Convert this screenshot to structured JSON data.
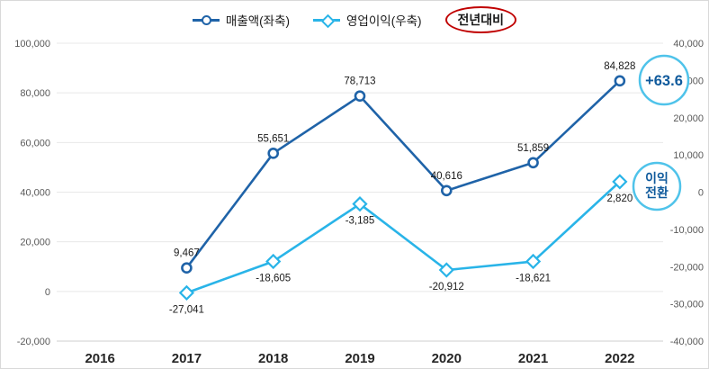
{
  "legend": {
    "series1": "매출액(좌축)",
    "series2": "영업이익(우축)",
    "annotation": "전년대비"
  },
  "colors": {
    "revenue": "#1f63a8",
    "profit": "#29b4e8",
    "annotation_red": "#c00000",
    "badge_stroke": "#4fc3ea",
    "badge_text": "#0f5a9c",
    "grid": "#e8e8e8",
    "axis_line": "#cfcfcf",
    "axis_text": "#595959",
    "x_text": "#262626",
    "data_label": "#1a1a1a"
  },
  "chart_data": {
    "type": "line",
    "title": "",
    "categories": [
      "2016",
      "2017",
      "2018",
      "2019",
      "2020",
      "2021",
      "2022"
    ],
    "series": [
      {
        "name": "매출액(좌축)",
        "axis": "left",
        "marker": "circle",
        "values": [
          null,
          9467,
          55651,
          78713,
          40616,
          51859,
          84828
        ],
        "labels": [
          null,
          "9,467",
          "55,651",
          "78,713",
          "40,616",
          "51,859",
          "84,828"
        ]
      },
      {
        "name": "영업이익(우축)",
        "axis": "right",
        "marker": "diamond",
        "values": [
          null,
          -27041,
          -18605,
          -3185,
          -20912,
          -18621,
          2820
        ],
        "labels": [
          null,
          "-27,041",
          "-18,605",
          "-3,185",
          "-20,912",
          "-18,621",
          "2,820"
        ]
      }
    ],
    "left_axis": {
      "min": -20000,
      "max": 100000,
      "step": 20000,
      "ticks": [
        "100,000",
        "80,000",
        "60,000",
        "40,000",
        "20,000",
        "0",
        "-20,000"
      ]
    },
    "right_axis": {
      "min": -40000,
      "max": 40000,
      "step": 10000,
      "ticks": [
        "40,000",
        "30,000",
        "20,000",
        "10,000",
        "0",
        "-10,000",
        "-20,000",
        "-30,000",
        "-40,000"
      ]
    },
    "grid": "horizontal",
    "legend_position": "top",
    "annotations": [
      {
        "type": "circle-badge",
        "text": "+63.6",
        "near": "2022 revenue point"
      },
      {
        "type": "circle-badge",
        "lines": [
          "이익",
          "전환"
        ],
        "near": "2022 operating profit point"
      }
    ]
  }
}
